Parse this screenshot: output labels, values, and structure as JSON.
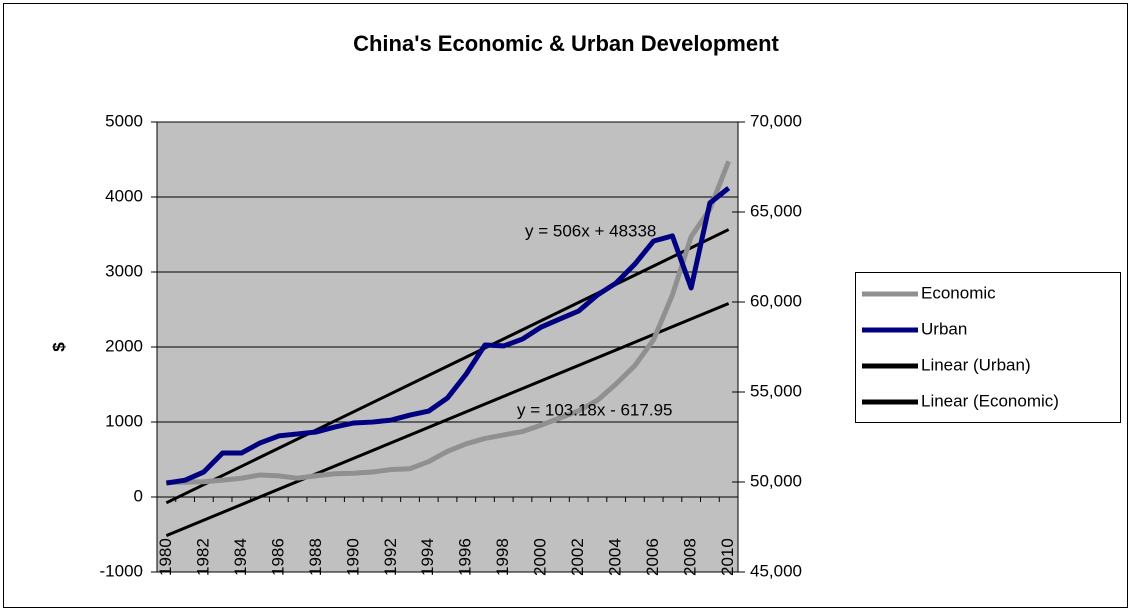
{
  "chart_data": {
    "type": "line",
    "title": "China's Economic & Urban Development",
    "ylabel": "$",
    "categories": [
      "1980",
      null,
      "1982",
      null,
      "1984",
      null,
      "1986",
      null,
      "1988",
      null,
      "1990",
      null,
      "1992",
      null,
      "1994",
      null,
      "1996",
      null,
      "1998",
      null,
      "2000",
      null,
      "2002",
      null,
      "2004",
      null,
      "2006",
      null,
      "2008",
      null,
      "2010"
    ],
    "series": [
      {
        "name": "Economic",
        "color": "#909090",
        "axis": "y",
        "values": [
          195,
          197,
          203,
          225,
          250,
          294,
          281,
          251,
          283,
          310,
          317,
          333,
          366,
          377,
          473,
          609,
          709,
          781,
          828,
          873,
          959,
          1053,
          1149,
          1289,
          1509,
          1753,
          2099,
          2695,
          3471,
          3838,
          4477
        ]
      },
      {
        "name": "Urban",
        "color": "#000080",
        "axis": "y2",
        "values": [
          49940,
          50100,
          50560,
          51610,
          51610,
          52170,
          52560,
          52670,
          52780,
          53060,
          53280,
          53330,
          53440,
          53720,
          53940,
          54670,
          56000,
          57610,
          57560,
          57940,
          58610,
          59060,
          59500,
          60390,
          61060,
          62110,
          63390,
          63670,
          60780,
          65500,
          66330
        ]
      }
    ],
    "trendlines": [
      {
        "name": "Linear (Urban)",
        "color": "#000000",
        "axis": "y2",
        "slope": 506,
        "intercept": 48338,
        "label": "y = 506x + 48338"
      },
      {
        "name": "Linear (Economic)",
        "color": "#000000",
        "axis": "y",
        "slope": 103.18,
        "intercept": -617.95,
        "label": "y = 103.18x - 617.95"
      }
    ],
    "ylim": [
      -1000,
      5000
    ],
    "yticks": [
      -1000,
      0,
      1000,
      2000,
      3000,
      4000,
      5000
    ],
    "y2lim": [
      45000,
      70000
    ],
    "y2ticks": [
      {
        "value": 45000,
        "label": "45,000"
      },
      {
        "value": 50000,
        "label": "50,000"
      },
      {
        "value": 55000,
        "label": "55,000"
      },
      {
        "value": 60000,
        "label": "60,000"
      },
      {
        "value": 65000,
        "label": "65,000"
      },
      {
        "value": 70000,
        "label": "70,000"
      }
    ],
    "grid": true,
    "plot_background": "#c0c0c0",
    "legend": "right"
  }
}
